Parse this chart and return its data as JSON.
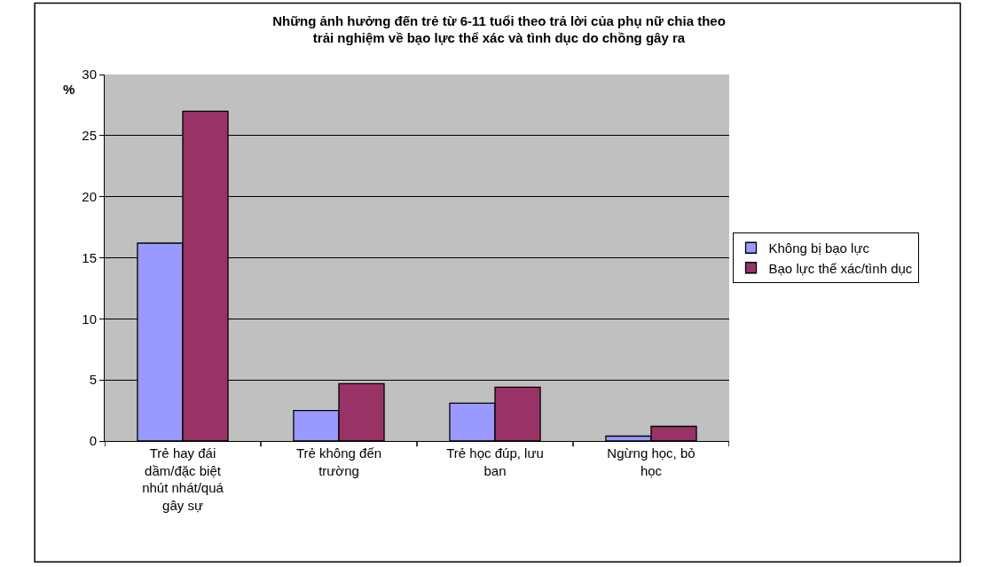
{
  "chart_data": {
    "type": "bar",
    "title": "Những ảnh hưởng đến trẻ từ 6-11 tuổi theo trả lời của phụ nữ chia theo trải nghiệm về bạo lực thể xác và tình dục do chồng gây ra",
    "ylabel": "%",
    "categories": [
      "Trẻ hay đái dầm/đặc biệt nhút nhát/quá gây sự",
      "Trẻ không đến trường",
      "Trẻ học đúp, lưu ban",
      "Ngừng học, bỏ học"
    ],
    "series": [
      {
        "name": "Không bị bạo lực",
        "color": "#9999ff",
        "values": [
          16.2,
          2.5,
          3.1,
          0.4
        ]
      },
      {
        "name": "Bạo lực thể xác/tình dục",
        "color": "#993366",
        "values": [
          27.0,
          4.7,
          4.4,
          1.2
        ]
      }
    ],
    "ylim": [
      0,
      30
    ],
    "yticks": [
      0,
      5,
      10,
      15,
      20,
      25,
      30
    ],
    "grid": "y",
    "legend": "right"
  }
}
